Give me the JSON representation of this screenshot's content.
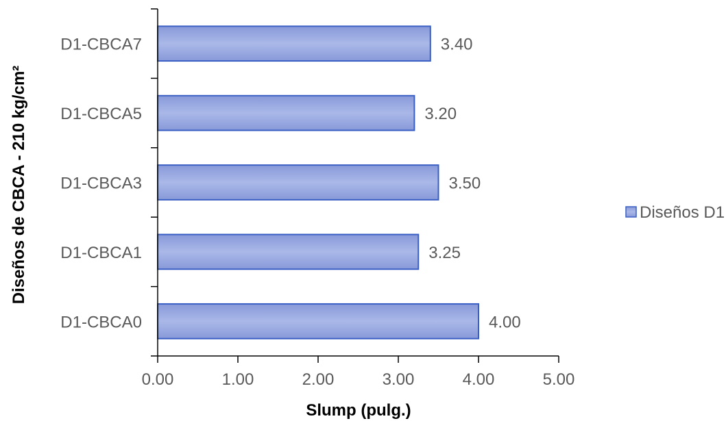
{
  "chart_data": {
    "type": "bar",
    "orientation": "horizontal",
    "categories": [
      "D1-CBCA7",
      "D1-CBCA5",
      "D1-CBCA3",
      "D1-CBCA1",
      "D1-CBCA0"
    ],
    "series": [
      {
        "name": "Diseños D1",
        "values": [
          3.4,
          3.2,
          3.5,
          3.25,
          4.0
        ]
      }
    ],
    "data_labels": [
      "3.40",
      "3.20",
      "3.50",
      "3.25",
      "4.00"
    ],
    "xticks": [
      "0.00",
      "1.00",
      "2.00",
      "3.00",
      "4.00",
      "5.00"
    ],
    "xlim": [
      0,
      5
    ],
    "xlabel": "Slump (pulg.)",
    "ylabel": "Diseños de CBCA - 210 kg/cm²",
    "legend_position": "right",
    "grid": false,
    "colors": {
      "bar_fill_top": "#8497d8",
      "bar_fill_mid": "#a9b7e6",
      "bar_stroke": "#3a5fc4",
      "axis": "#000000",
      "text": "#595959"
    }
  }
}
